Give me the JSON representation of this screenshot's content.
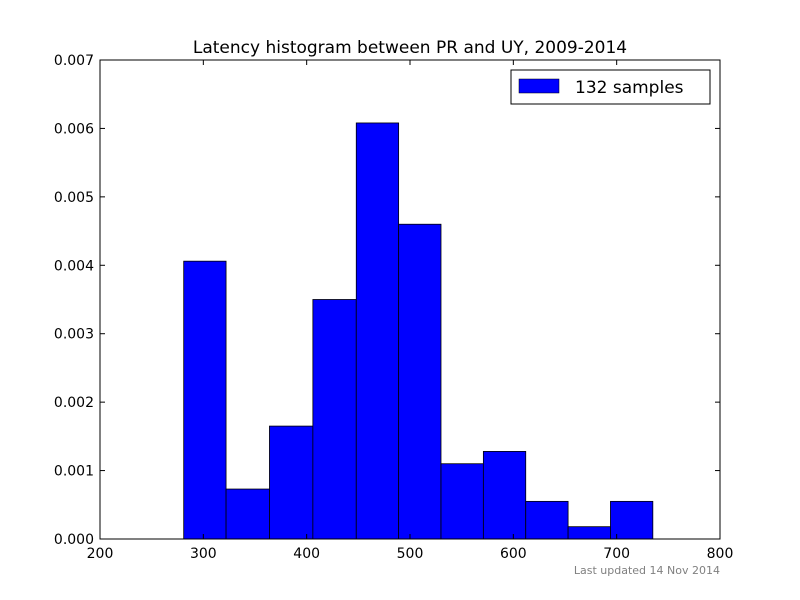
{
  "chart_data": {
    "type": "bar",
    "title": "Latency histogram between PR and UY, 2009-2014",
    "xlabel": "",
    "ylabel": "",
    "xlim": [
      200,
      800
    ],
    "ylim": [
      0,
      0.007
    ],
    "x_ticks": [
      "200",
      "300",
      "400",
      "500",
      "600",
      "700",
      "800"
    ],
    "y_ticks": [
      "0.000",
      "0.001",
      "0.002",
      "0.003",
      "0.004",
      "0.005",
      "0.006",
      "0.007"
    ],
    "bin_edges": [
      281,
      322,
      364,
      406,
      448,
      489,
      530,
      571,
      612,
      653,
      694,
      735
    ],
    "series": [
      {
        "name": "132 samples",
        "values": [
          0.00406,
          0.00073,
          0.00165,
          0.0035,
          0.00608,
          0.0046,
          0.0011,
          0.00128,
          0.00055,
          0.00018,
          0.00055
        ]
      }
    ],
    "bar_color": "#0000ff",
    "legend_position": "top-right",
    "grid": false,
    "footnote": "Last updated 14 Nov 2014"
  }
}
